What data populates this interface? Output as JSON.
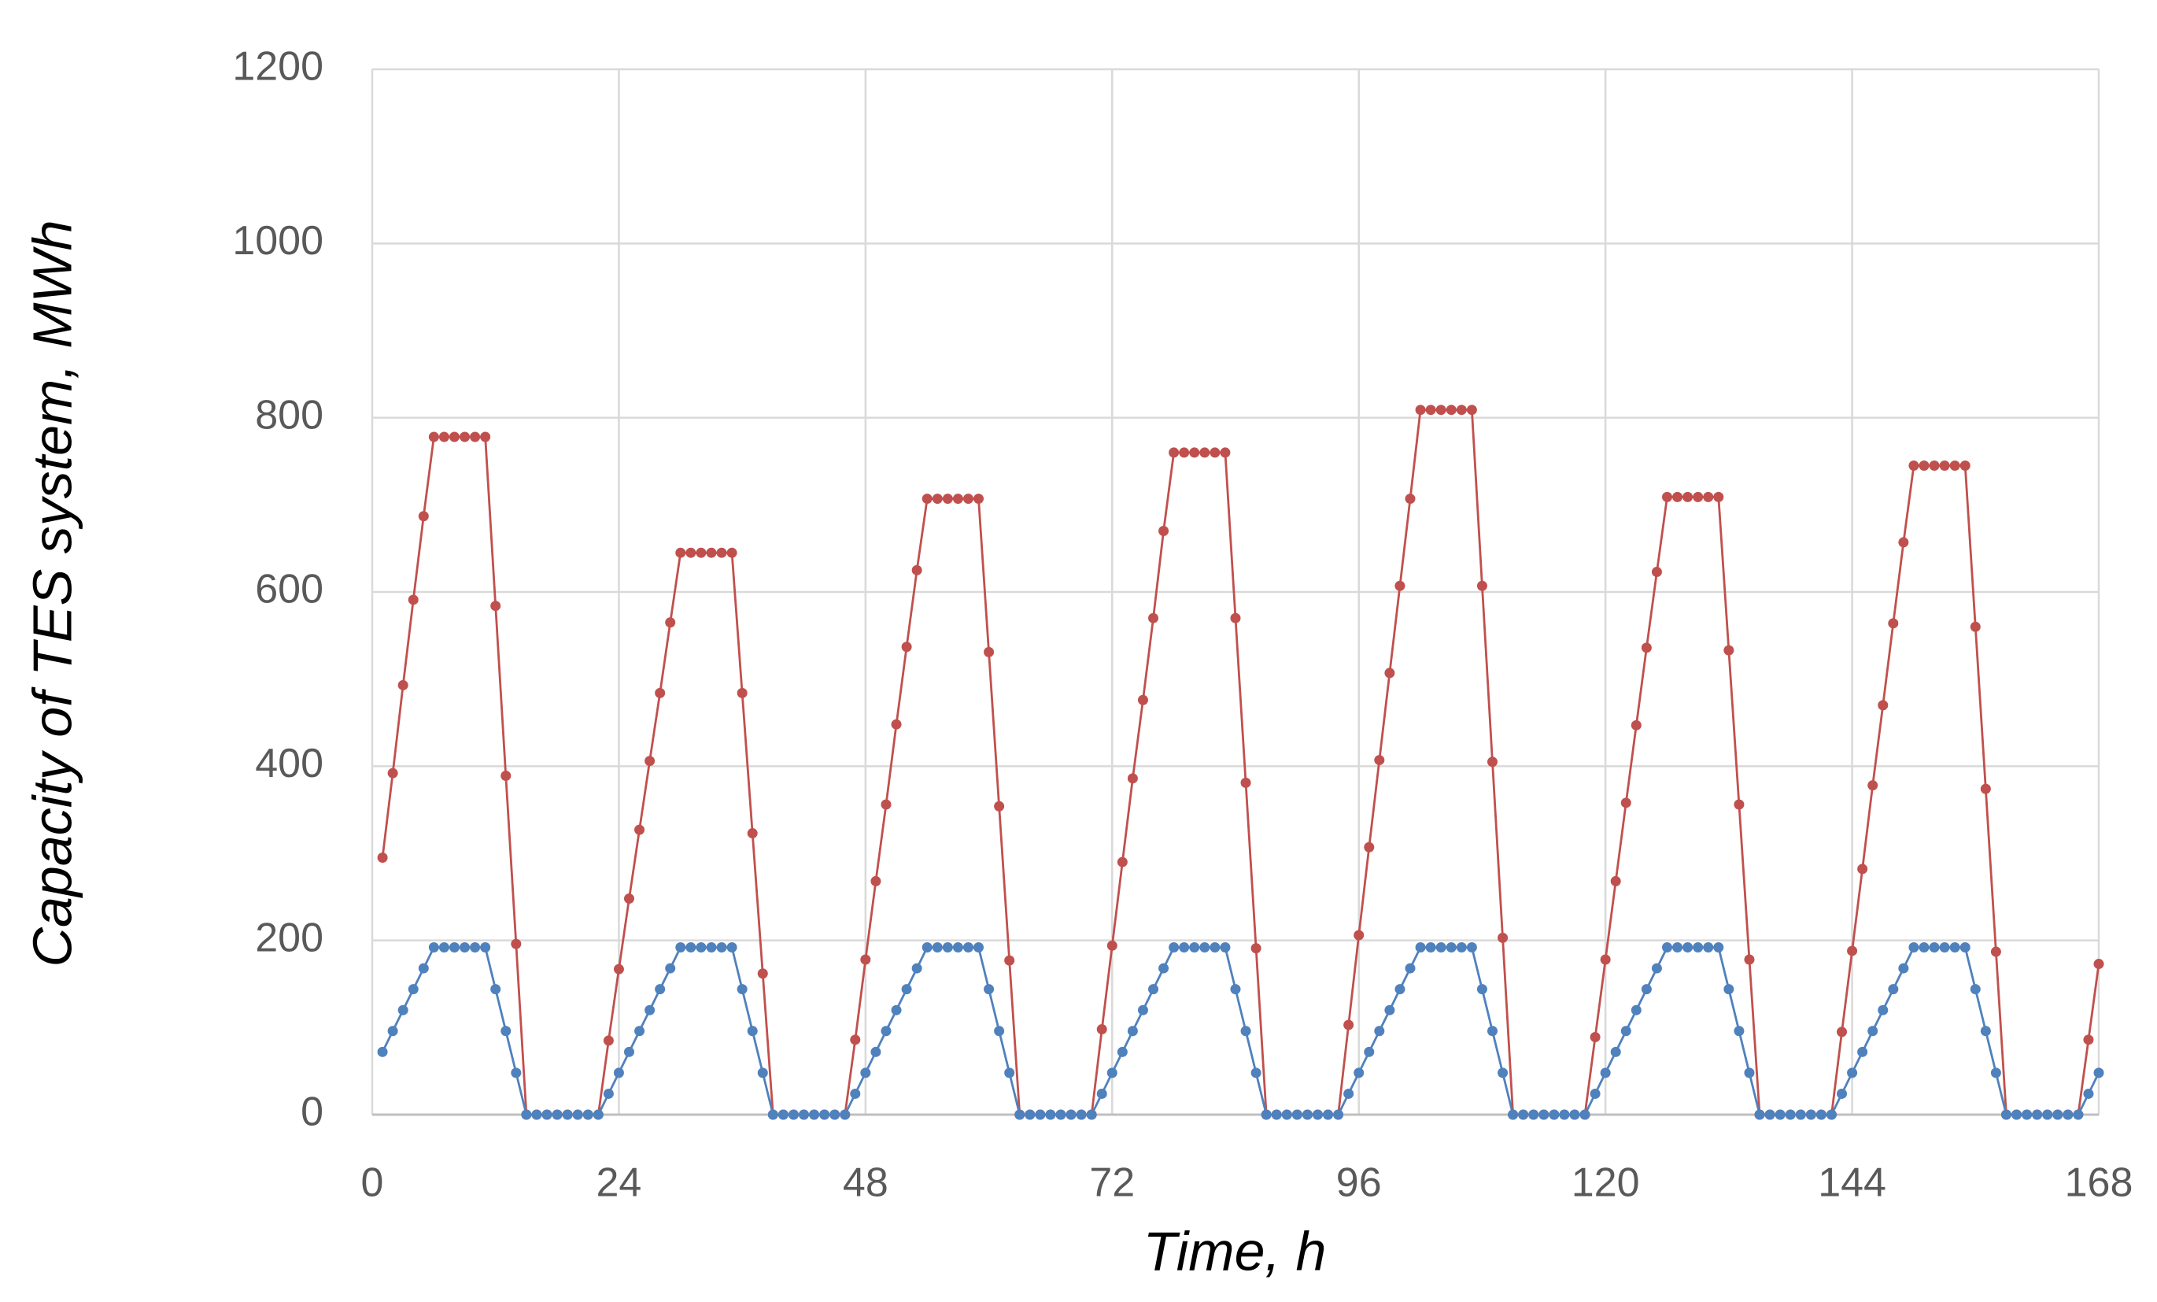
{
  "chart_data": {
    "type": "line",
    "xlabel": "Time, h",
    "ylabel": "Capacity of TES system, MWh",
    "x": [
      1,
      2,
      3,
      4,
      5,
      6,
      7,
      8,
      9,
      10,
      11,
      12,
      13,
      14,
      15,
      16,
      17,
      18,
      19,
      20,
      21,
      22,
      23,
      24,
      25,
      26,
      27,
      28,
      29,
      30,
      31,
      32,
      33,
      34,
      35,
      36,
      37,
      38,
      39,
      40,
      41,
      42,
      43,
      44,
      45,
      46,
      47,
      48,
      49,
      50,
      51,
      52,
      53,
      54,
      55,
      56,
      57,
      58,
      59,
      60,
      61,
      62,
      63,
      64,
      65,
      66,
      67,
      68,
      69,
      70,
      71,
      72,
      73,
      74,
      75,
      76,
      77,
      78,
      79,
      80,
      81,
      82,
      83,
      84,
      85,
      86,
      87,
      88,
      89,
      90,
      91,
      92,
      93,
      94,
      95,
      96,
      97,
      98,
      99,
      100,
      101,
      102,
      103,
      104,
      105,
      106,
      107,
      108,
      109,
      110,
      111,
      112,
      113,
      114,
      115,
      116,
      117,
      118,
      119,
      120,
      121,
      122,
      123,
      124,
      125,
      126,
      127,
      128,
      129,
      130,
      131,
      132,
      133,
      134,
      135,
      136,
      137,
      138,
      139,
      140,
      141,
      142,
      143,
      144,
      145,
      146,
      147,
      148,
      149,
      150,
      151,
      152,
      153,
      154,
      155,
      156,
      157,
      158,
      159,
      160,
      161,
      162,
      163,
      164,
      165,
      166,
      167,
      168
    ],
    "series": [
      {
        "color": "#c0504d",
        "values": [
          295,
          392,
          493,
          591,
          687,
          778,
          778,
          778,
          778,
          778,
          778,
          584,
          389,
          196,
          0,
          0,
          0,
          0,
          0,
          0,
          0,
          0,
          85,
          167,
          248,
          327,
          406,
          484,
          565,
          645,
          645,
          645,
          645,
          645,
          645,
          484,
          323,
          162,
          0,
          0,
          0,
          0,
          0,
          0,
          0,
          0,
          86,
          178,
          268,
          356,
          448,
          537,
          625,
          707,
          707,
          707,
          707,
          707,
          707,
          531,
          354,
          177,
          0,
          0,
          0,
          0,
          0,
          0,
          0,
          0,
          98,
          194,
          290,
          386,
          476,
          570,
          670,
          760,
          760,
          760,
          760,
          760,
          760,
          570,
          381,
          191,
          0,
          0,
          0,
          0,
          0,
          0,
          0,
          0,
          103,
          206,
          307,
          407,
          507,
          607,
          707,
          809,
          809,
          809,
          809,
          809,
          809,
          607,
          405,
          203,
          0,
          0,
          0,
          0,
          0,
          0,
          0,
          0,
          89,
          178,
          268,
          358,
          447,
          536,
          623,
          709,
          709,
          709,
          709,
          709,
          709,
          533,
          356,
          178,
          0,
          0,
          0,
          0,
          0,
          0,
          0,
          0,
          95,
          188,
          282,
          378,
          470,
          564,
          657,
          745,
          745,
          745,
          745,
          745,
          745,
          560,
          374,
          187,
          0,
          0,
          0,
          0,
          0,
          0,
          0,
          0,
          86,
          173
        ]
      },
      {
        "color": "#4f81bd",
        "values": [
          72,
          96,
          120,
          144,
          168,
          192,
          192,
          192,
          192,
          192,
          192,
          144,
          96,
          48,
          0,
          0,
          0,
          0,
          0,
          0,
          0,
          0,
          24,
          48,
          72,
          96,
          120,
          144,
          168,
          192,
          192,
          192,
          192,
          192,
          192,
          144,
          96,
          48,
          0,
          0,
          0,
          0,
          0,
          0,
          0,
          0,
          24,
          48,
          72,
          96,
          120,
          144,
          168,
          192,
          192,
          192,
          192,
          192,
          192,
          144,
          96,
          48,
          0,
          0,
          0,
          0,
          0,
          0,
          0,
          0,
          24,
          48,
          72,
          96,
          120,
          144,
          168,
          192,
          192,
          192,
          192,
          192,
          192,
          144,
          96,
          48,
          0,
          0,
          0,
          0,
          0,
          0,
          0,
          0,
          24,
          48,
          72,
          96,
          120,
          144,
          168,
          192,
          192,
          192,
          192,
          192,
          192,
          144,
          96,
          48,
          0,
          0,
          0,
          0,
          0,
          0,
          0,
          0,
          24,
          48,
          72,
          96,
          120,
          144,
          168,
          192,
          192,
          192,
          192,
          192,
          192,
          144,
          96,
          48,
          0,
          0,
          0,
          0,
          0,
          0,
          0,
          0,
          24,
          48,
          72,
          96,
          120,
          144,
          168,
          192,
          192,
          192,
          192,
          192,
          192,
          144,
          96,
          48,
          0,
          0,
          0,
          0,
          0,
          0,
          0,
          0,
          24,
          48
        ]
      }
    ],
    "xlim": [
      0,
      168
    ],
    "xticks": [
      0,
      24,
      48,
      72,
      96,
      120,
      144,
      168
    ],
    "ylim": [
      0,
      1200
    ],
    "yticks": [
      0,
      200,
      400,
      600,
      800,
      1000,
      1200
    ],
    "grid": true
  }
}
